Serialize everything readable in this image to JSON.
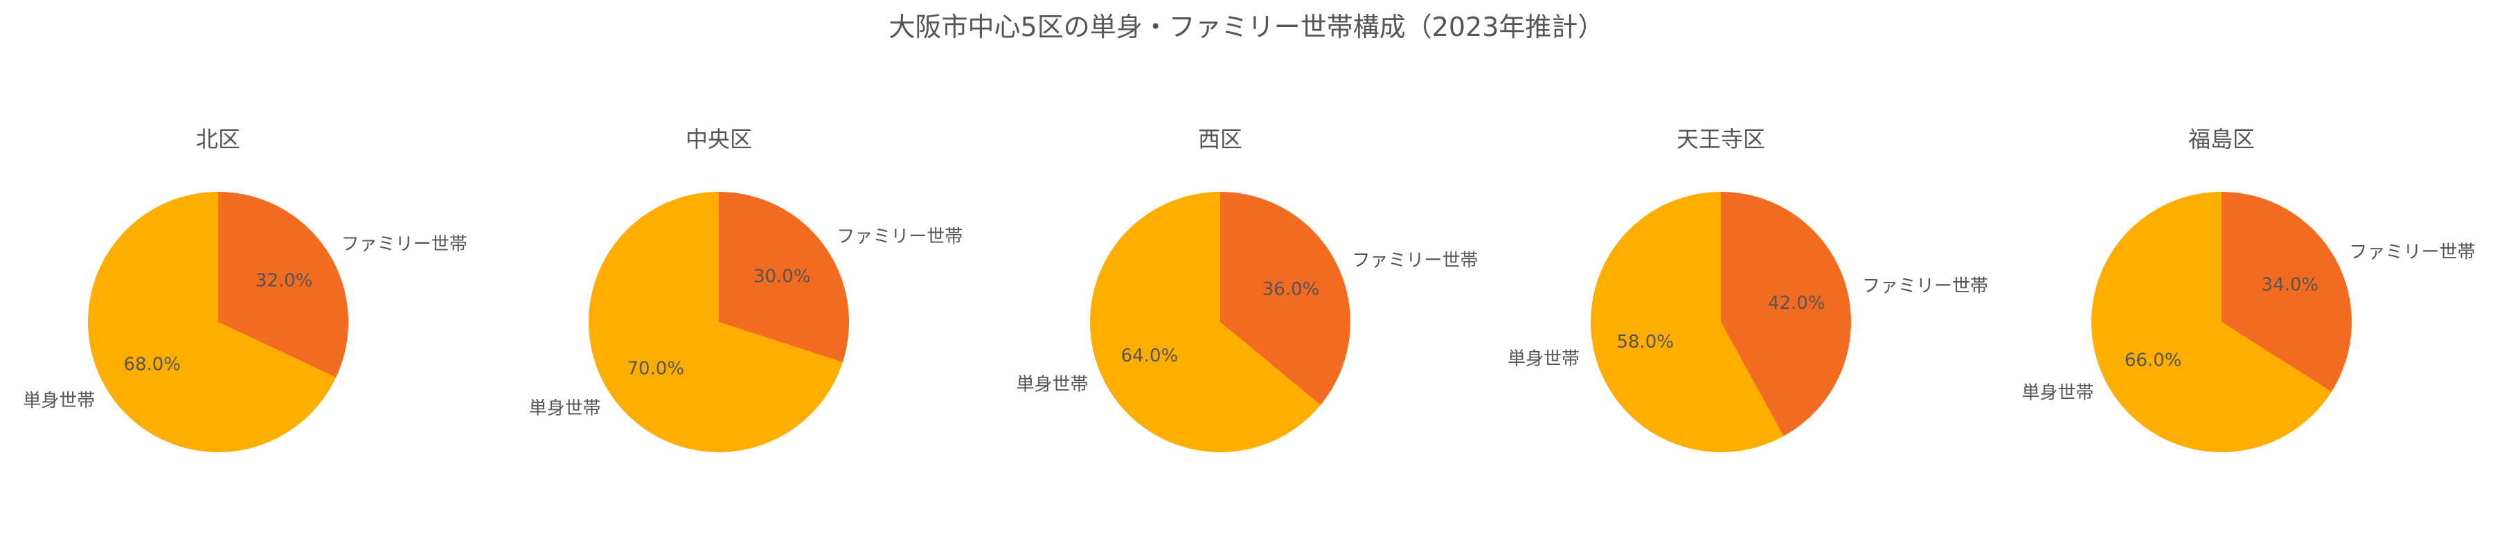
{
  "title": "大阪市中心5区の単身・ファミリー世帯構成（2023年推計）",
  "chart_data": {
    "type": "pie",
    "title": "大阪市中心5区の単身・ファミリー世帯構成（2023年推計）",
    "slice_labels": [
      "ファミリー世帯",
      "単身世帯"
    ],
    "colors": {
      "ファミリー世帯": "#F26B21",
      "単身世帯": "#FFAE00"
    },
    "start_angle": "12 o'clock, clockwise",
    "pies": [
      {
        "name": "北区",
        "values": [
          32.0,
          68.0
        ],
        "labels": [
          "32.0%",
          "68.0%"
        ]
      },
      {
        "name": "中央区",
        "values": [
          30.0,
          70.0
        ],
        "labels": [
          "30.0%",
          "70.0%"
        ]
      },
      {
        "name": "西区",
        "values": [
          36.0,
          64.0
        ],
        "labels": [
          "36.0%",
          "64.0%"
        ]
      },
      {
        "name": "天王寺区",
        "values": [
          42.0,
          58.0
        ],
        "labels": [
          "42.0%",
          "58.0%"
        ]
      },
      {
        "name": "福島区",
        "values": [
          34.0,
          66.0
        ],
        "labels": [
          "34.0%",
          "66.0%"
        ]
      }
    ]
  }
}
